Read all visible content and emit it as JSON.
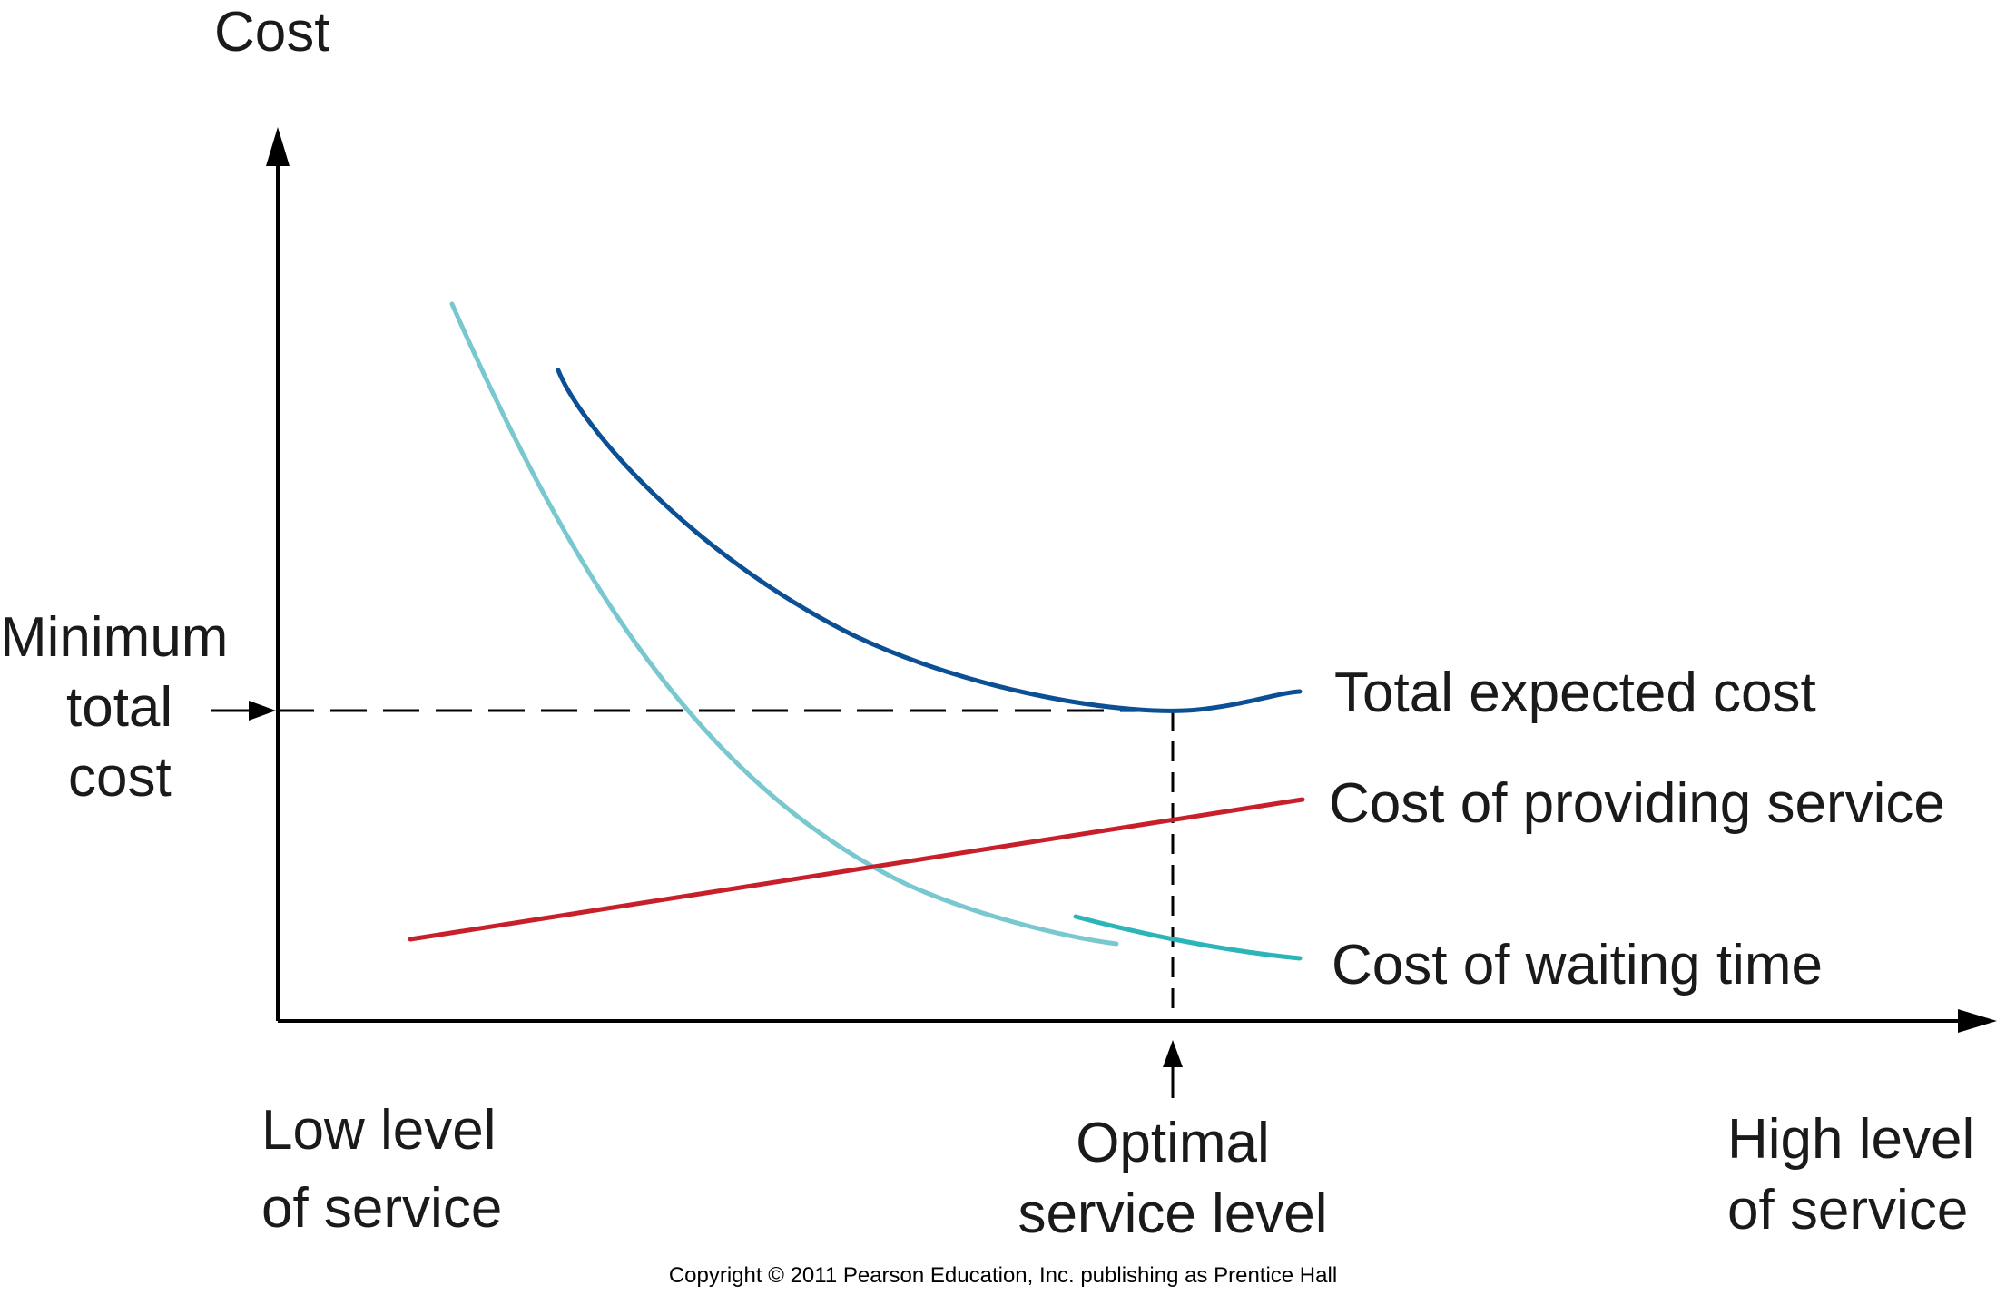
{
  "axes": {
    "y_label": "Cost",
    "x_low_label": [
      "Low level",
      "of service"
    ],
    "x_optimal_label": [
      "Optimal",
      "service level"
    ],
    "x_high_label": [
      "High level",
      "of service"
    ],
    "y_min_label": [
      "Minimum",
      "total",
      "cost"
    ]
  },
  "curves": [
    {
      "name": "Total expected cost",
      "color": "#0b4f94"
    },
    {
      "name": "Cost of providing service",
      "color": "#c8202b"
    },
    {
      "name": "Cost of waiting time",
      "color": "#79c8cf",
      "accent_color": "#2bb5b8"
    }
  ],
  "copyright": "Copyright © 2011 Pearson Education, Inc. publishing as Prentice Hall",
  "colors": {
    "axis": "#000000",
    "text": "#1a1a1a"
  }
}
